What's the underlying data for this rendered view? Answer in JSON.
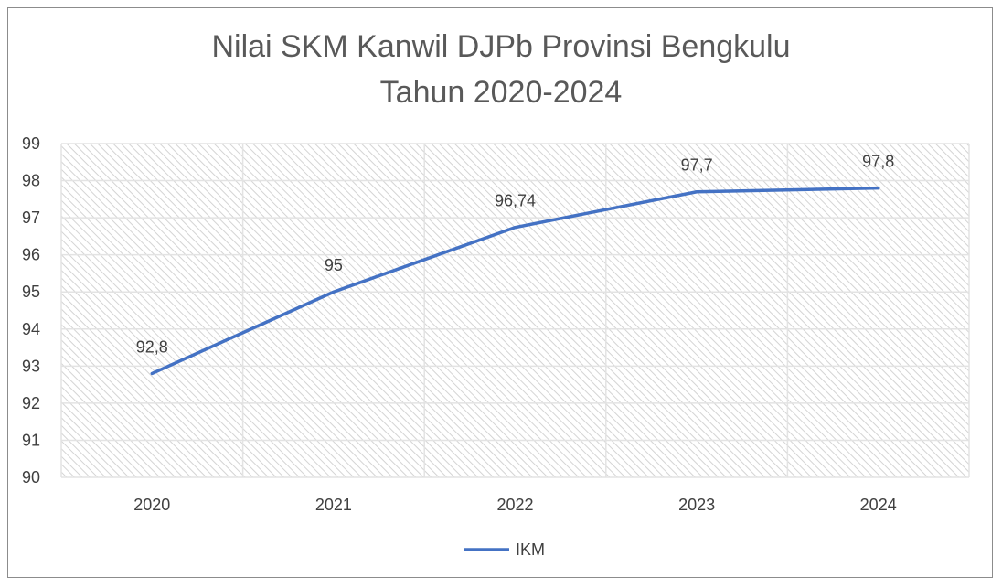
{
  "chart_data": {
    "type": "line",
    "title": "Nilai SKM Kanwil DJPb Provinsi Bengkulu",
    "subtitle": "Tahun 2020-2024",
    "categories": [
      "2020",
      "2021",
      "2022",
      "2023",
      "2024"
    ],
    "series": [
      {
        "name": "IKM",
        "values": [
          92.8,
          95,
          96.74,
          97.7,
          97.8
        ],
        "labels": [
          "92,8",
          "95",
          "96,74",
          "97,7",
          "97,8"
        ],
        "color": "#4472c4"
      }
    ],
    "ylim": [
      90,
      99
    ],
    "yticks": [
      90,
      91,
      92,
      93,
      94,
      95,
      96,
      97,
      98,
      99
    ],
    "xlabel": "",
    "ylabel": "",
    "grid": true,
    "legend": "bottom"
  }
}
